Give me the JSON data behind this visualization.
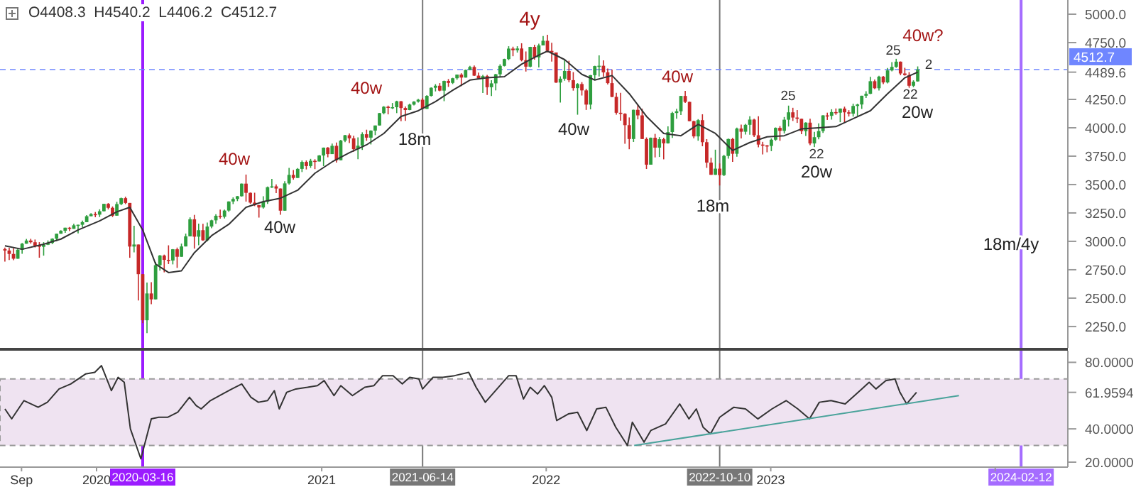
{
  "chart_data": [
    {
      "type": "candlestick",
      "subtitle": "O4408.3  H4540.2  L4406.2  C4512.7",
      "xlim": [
        "2019-07-28",
        "2024-04-28"
      ],
      "ylim": [
        2062,
        5125
      ],
      "yticks": [
        {
          "value": 2250,
          "label": "2250.0"
        },
        {
          "value": 2500,
          "label": "2500.0"
        },
        {
          "value": 2750,
          "label": "2750.0"
        },
        {
          "value": 3000,
          "label": "3000.0"
        },
        {
          "value": 3250,
          "label": "3250.0"
        },
        {
          "value": 3500,
          "label": "3500.0"
        },
        {
          "value": 3750,
          "label": "3750.0"
        },
        {
          "value": 4000,
          "label": "4000.0"
        },
        {
          "value": 4250,
          "label": "4250.0"
        },
        {
          "value": 4489.6,
          "label": "4489.6"
        },
        {
          "value": 4750,
          "label": "4750.0"
        },
        {
          "value": 5000,
          "label": "5000.0"
        }
      ],
      "tick_labels": "y",
      "x": [
        "2019-08-05",
        "2019-08-12",
        "2019-08-19",
        "2019-08-26",
        "2019-09-02",
        "2019-09-09",
        "2019-09-16",
        "2019-09-23",
        "2019-09-30",
        "2019-10-07",
        "2019-10-14",
        "2019-10-21",
        "2019-10-28",
        "2019-11-04",
        "2019-11-11",
        "2019-11-18",
        "2019-11-25",
        "2019-12-02",
        "2019-12-09",
        "2019-12-16",
        "2019-12-23",
        "2019-12-30",
        "2020-01-06",
        "2020-01-13",
        "2020-01-20",
        "2020-01-27",
        "2020-02-03",
        "2020-02-10",
        "2020-02-17",
        "2020-02-24",
        "2020-03-02",
        "2020-03-09",
        "2020-03-16",
        "2020-03-23",
        "2020-03-30",
        "2020-04-06",
        "2020-04-13",
        "2020-04-20",
        "2020-04-27",
        "2020-05-04",
        "2020-05-11",
        "2020-05-18",
        "2020-05-25",
        "2020-06-01",
        "2020-06-08",
        "2020-06-15",
        "2020-06-22",
        "2020-06-29",
        "2020-07-06",
        "2020-07-13",
        "2020-07-20",
        "2020-07-27",
        "2020-08-03",
        "2020-08-10",
        "2020-08-17",
        "2020-08-24",
        "2020-08-31",
        "2020-09-07",
        "2020-09-14",
        "2020-09-21",
        "2020-09-28",
        "2020-10-05",
        "2020-10-12",
        "2020-10-19",
        "2020-10-26",
        "2020-11-02",
        "2020-11-09",
        "2020-11-16",
        "2020-11-23",
        "2020-11-30",
        "2020-12-07",
        "2020-12-14",
        "2020-12-21",
        "2020-12-28",
        "2021-01-04",
        "2021-01-11",
        "2021-01-18",
        "2021-01-25",
        "2021-02-01",
        "2021-02-08",
        "2021-02-15",
        "2021-02-22",
        "2021-03-01",
        "2021-03-08",
        "2021-03-15",
        "2021-03-22",
        "2021-03-29",
        "2021-04-05",
        "2021-04-12",
        "2021-04-19",
        "2021-04-26",
        "2021-05-03",
        "2021-05-10",
        "2021-05-17",
        "2021-05-24",
        "2021-05-31",
        "2021-06-07",
        "2021-06-14",
        "2021-06-21",
        "2021-06-28",
        "2021-07-05",
        "2021-07-12",
        "2021-07-19",
        "2021-07-26",
        "2021-08-02",
        "2021-08-09",
        "2021-08-16",
        "2021-08-23",
        "2021-08-30",
        "2021-09-06",
        "2021-09-13",
        "2021-09-20",
        "2021-09-27",
        "2021-10-04",
        "2021-10-11",
        "2021-10-18",
        "2021-10-25",
        "2021-11-01",
        "2021-11-08",
        "2021-11-15",
        "2021-11-22",
        "2021-11-29",
        "2021-12-06",
        "2021-12-13",
        "2021-12-20",
        "2021-12-27",
        "2022-01-03",
        "2022-01-10",
        "2022-01-17",
        "2022-01-24",
        "2022-01-31",
        "2022-02-07",
        "2022-02-14",
        "2022-02-21",
        "2022-02-28",
        "2022-03-07",
        "2022-03-14",
        "2022-03-21",
        "2022-03-28",
        "2022-04-04",
        "2022-04-11",
        "2022-04-18",
        "2022-04-25",
        "2022-05-02",
        "2022-05-09",
        "2022-05-16",
        "2022-05-23",
        "2022-05-30",
        "2022-06-06",
        "2022-06-13",
        "2022-06-20",
        "2022-06-27",
        "2022-07-04",
        "2022-07-11",
        "2022-07-18",
        "2022-07-25",
        "2022-08-01",
        "2022-08-08",
        "2022-08-15",
        "2022-08-22",
        "2022-08-29",
        "2022-09-05",
        "2022-09-12",
        "2022-09-19",
        "2022-09-26",
        "2022-10-03",
        "2022-10-10",
        "2022-10-17",
        "2022-10-24",
        "2022-10-31",
        "2022-11-07",
        "2022-11-14",
        "2022-11-21",
        "2022-11-28",
        "2022-12-05",
        "2022-12-12",
        "2022-12-19",
        "2022-12-26",
        "2023-01-02",
        "2023-01-09",
        "2023-01-16",
        "2023-01-23",
        "2023-01-30",
        "2023-02-06",
        "2023-02-13",
        "2023-02-20",
        "2023-02-27",
        "2023-03-06",
        "2023-03-13",
        "2023-03-20",
        "2023-03-27",
        "2023-04-03",
        "2023-04-10",
        "2023-04-17",
        "2023-04-24",
        "2023-05-01",
        "2023-05-08",
        "2023-05-15",
        "2023-05-22",
        "2023-05-29",
        "2023-06-05",
        "2023-06-12",
        "2023-06-19",
        "2023-06-26",
        "2023-07-03",
        "2023-07-10",
        "2023-07-17",
        "2023-07-24",
        "2023-07-31",
        "2023-08-07",
        "2023-08-14",
        "2023-08-21",
        "2023-08-28"
      ],
      "ohlc": [
        [
          2932,
          2945,
          2822,
          2919
        ],
        [
          2919,
          2944,
          2836,
          2889
        ],
        [
          2889,
          2939,
          2834,
          2847
        ],
        [
          2847,
          2940,
          2847,
          2926
        ],
        [
          2926,
          2985,
          2891,
          2979
        ],
        [
          2979,
          3021,
          2979,
          3007
        ],
        [
          3007,
          3022,
          2980,
          2992
        ],
        [
          2992,
          3016,
          2946,
          2962
        ],
        [
          2962,
          2993,
          2856,
          2952
        ],
        [
          2952,
          2993,
          2874,
          2970
        ],
        [
          2970,
          3008,
          2967,
          2986
        ],
        [
          2986,
          3027,
          2975,
          3023
        ],
        [
          3023,
          3067,
          3000,
          3067
        ],
        [
          3067,
          3098,
          3067,
          3093
        ],
        [
          3093,
          3120,
          3075,
          3120
        ],
        [
          3120,
          3127,
          3090,
          3110
        ],
        [
          3110,
          3154,
          3110,
          3141
        ],
        [
          3141,
          3146,
          3070,
          3146
        ],
        [
          3146,
          3183,
          3123,
          3169
        ],
        [
          3169,
          3231,
          3169,
          3221
        ],
        [
          3221,
          3248,
          3221,
          3240
        ],
        [
          3240,
          3258,
          3212,
          3235
        ],
        [
          3235,
          3282,
          3214,
          3265
        ],
        [
          3265,
          3330,
          3263,
          3330
        ],
        [
          3330,
          3337,
          3281,
          3295
        ],
        [
          3295,
          3307,
          3214,
          3226
        ],
        [
          3226,
          3348,
          3225,
          3328
        ],
        [
          3328,
          3385,
          3318,
          3380
        ],
        [
          3380,
          3393,
          3328,
          3338
        ],
        [
          3338,
          3338,
          2855,
          2954
        ],
        [
          2954,
          3137,
          2902,
          2972
        ],
        [
          2972,
          2972,
          2479,
          2711
        ],
        [
          2711,
          2711,
          2280,
          2305
        ],
        [
          2305,
          2637,
          2192,
          2541
        ],
        [
          2541,
          2641,
          2447,
          2489
        ],
        [
          2489,
          2819,
          2489,
          2790
        ],
        [
          2790,
          2880,
          2742,
          2875
        ],
        [
          2875,
          2883,
          2727,
          2837
        ],
        [
          2837,
          2965,
          2800,
          2831
        ],
        [
          2831,
          2932,
          2797,
          2930
        ],
        [
          2930,
          2945,
          2766,
          2864
        ],
        [
          2864,
          2980,
          2864,
          2955
        ],
        [
          2955,
          3068,
          2955,
          3044
        ],
        [
          3044,
          3211,
          3044,
          3194
        ],
        [
          3194,
          3233,
          2936,
          3041
        ],
        [
          3041,
          3156,
          2965,
          3098
        ],
        [
          3098,
          3155,
          3004,
          3009
        ],
        [
          3009,
          3165,
          2999,
          3130
        ],
        [
          3130,
          3190,
          3115,
          3185
        ],
        [
          3185,
          3238,
          3154,
          3225
        ],
        [
          3225,
          3280,
          3200,
          3216
        ],
        [
          3216,
          3279,
          3201,
          3271
        ],
        [
          3271,
          3352,
          3260,
          3351
        ],
        [
          3351,
          3387,
          3328,
          3373
        ],
        [
          3373,
          3399,
          3354,
          3397
        ],
        [
          3397,
          3509,
          3394,
          3508
        ],
        [
          3508,
          3588,
          3350,
          3427
        ],
        [
          3427,
          3430,
          3330,
          3341
        ],
        [
          3341,
          3428,
          3310,
          3319
        ],
        [
          3319,
          3320,
          3209,
          3298
        ],
        [
          3298,
          3397,
          3288,
          3348
        ],
        [
          3348,
          3482,
          3330,
          3477
        ],
        [
          3477,
          3550,
          3470,
          3484
        ],
        [
          3484,
          3502,
          3425,
          3465
        ],
        [
          3465,
          3465,
          3234,
          3270
        ],
        [
          3270,
          3530,
          3270,
          3510
        ],
        [
          3510,
          3646,
          3500,
          3585
        ],
        [
          3585,
          3628,
          3543,
          3558
        ],
        [
          3558,
          3645,
          3558,
          3638
        ],
        [
          3638,
          3712,
          3610,
          3699
        ],
        [
          3699,
          3712,
          3633,
          3663
        ],
        [
          3663,
          3726,
          3647,
          3709
        ],
        [
          3709,
          3723,
          3636,
          3703
        ],
        [
          3703,
          3760,
          3703,
          3756
        ],
        [
          3756,
          3826,
          3662,
          3825
        ],
        [
          3825,
          3830,
          3740,
          3768
        ],
        [
          3768,
          3861,
          3768,
          3841
        ],
        [
          3841,
          3870,
          3694,
          3714
        ],
        [
          3714,
          3894,
          3714,
          3887
        ],
        [
          3887,
          3937,
          3874,
          3934
        ],
        [
          3934,
          3950,
          3865,
          3907
        ],
        [
          3907,
          3929,
          3789,
          3811
        ],
        [
          3811,
          3915,
          3723,
          3842
        ],
        [
          3842,
          3960,
          3805,
          3943
        ],
        [
          3943,
          3983,
          3885,
          3913
        ],
        [
          3913,
          3978,
          3853,
          3975
        ],
        [
          3975,
          4020,
          3935,
          4020
        ],
        [
          4020,
          4130,
          4020,
          4129
        ],
        [
          4129,
          4191,
          4118,
          4185
        ],
        [
          4185,
          4195,
          4118,
          4180
        ],
        [
          4180,
          4218,
          4165,
          4181
        ],
        [
          4181,
          4238,
          4129,
          4233
        ],
        [
          4233,
          4236,
          4057,
          4174
        ],
        [
          4174,
          4187,
          4061,
          4156
        ],
        [
          4156,
          4213,
          4155,
          4204
        ],
        [
          4204,
          4234,
          4197,
          4230
        ],
        [
          4230,
          4255,
          4222,
          4247
        ],
        [
          4247,
          4262,
          4164,
          4166
        ],
        [
          4166,
          4287,
          4166,
          4281
        ],
        [
          4281,
          4356,
          4275,
          4352
        ],
        [
          4352,
          4384,
          4320,
          4370
        ],
        [
          4370,
          4393,
          4321,
          4327
        ],
        [
          4327,
          4415,
          4234,
          4412
        ],
        [
          4412,
          4429,
          4360,
          4395
        ],
        [
          4395,
          4440,
          4385,
          4436
        ],
        [
          4436,
          4469,
          4423,
          4468
        ],
        [
          4468,
          4480,
          4367,
          4442
        ],
        [
          4442,
          4513,
          4442,
          4509
        ],
        [
          4509,
          4545,
          4509,
          4535
        ],
        [
          4535,
          4549,
          4456,
          4459
        ],
        [
          4459,
          4486,
          4427,
          4433
        ],
        [
          4433,
          4466,
          4306,
          4455
        ],
        [
          4455,
          4466,
          4289,
          4357
        ],
        [
          4357,
          4418,
          4279,
          4391
        ],
        [
          4391,
          4475,
          4329,
          4471
        ],
        [
          4471,
          4559,
          4445,
          4545
        ],
        [
          4545,
          4608,
          4540,
          4605
        ],
        [
          4605,
          4718,
          4595,
          4697
        ],
        [
          4697,
          4714,
          4630,
          4683
        ],
        [
          4683,
          4718,
          4662,
          4698
        ],
        [
          4698,
          4744,
          4585,
          4595
        ],
        [
          4595,
          4672,
          4495,
          4538
        ],
        [
          4538,
          4713,
          4532,
          4712
        ],
        [
          4712,
          4731,
          4600,
          4620
        ],
        [
          4620,
          4740,
          4531,
          4725
        ],
        [
          4725,
          4808,
          4725,
          4766
        ],
        [
          4766,
          4819,
          4662,
          4677
        ],
        [
          4677,
          4749,
          4582,
          4663
        ],
        [
          4663,
          4663,
          4395,
          4398
        ],
        [
          4398,
          4453,
          4222,
          4432
        ],
        [
          4432,
          4596,
          4414,
          4500
        ],
        [
          4500,
          4590,
          4401,
          4419
        ],
        [
          4419,
          4490,
          4327,
          4349
        ],
        [
          4349,
          4393,
          4115,
          4385
        ],
        [
          4385,
          4402,
          4284,
          4329
        ],
        [
          4329,
          4343,
          4157,
          4204
        ],
        [
          4204,
          4465,
          4162,
          4463
        ],
        [
          4463,
          4546,
          4424,
          4543
        ],
        [
          4543,
          4638,
          4452,
          4546
        ],
        [
          4546,
          4594,
          4450,
          4488
        ],
        [
          4488,
          4521,
          4381,
          4393
        ],
        [
          4393,
          4513,
          4269,
          4272
        ],
        [
          4272,
          4308,
          4115,
          4132
        ],
        [
          4132,
          4307,
          4063,
          4123
        ],
        [
          4123,
          4128,
          3859,
          4023
        ],
        [
          4023,
          4091,
          3811,
          3901
        ],
        [
          3901,
          4159,
          3875,
          4158
        ],
        [
          4158,
          4204,
          4074,
          4109
        ],
        [
          4109,
          4168,
          3901,
          3901
        ],
        [
          3901,
          3915,
          3637,
          3675
        ],
        [
          3675,
          3914,
          3675,
          3912
        ],
        [
          3912,
          3946,
          3739,
          3825
        ],
        [
          3825,
          3918,
          3743,
          3899
        ],
        [
          3899,
          3912,
          3722,
          3863
        ],
        [
          3863,
          4012,
          3860,
          3962
        ],
        [
          3962,
          4140,
          3911,
          4130
        ],
        [
          4130,
          4167,
          4079,
          4145
        ],
        [
          4145,
          4281,
          4112,
          4280
        ],
        [
          4280,
          4325,
          4218,
          4228
        ],
        [
          4228,
          4230,
          4057,
          4058
        ],
        [
          4058,
          4062,
          3907,
          3924
        ],
        [
          3924,
          4076,
          3886,
          4067
        ],
        [
          4067,
          4119,
          3837,
          3873
        ],
        [
          3873,
          3900,
          3647,
          3693
        ],
        [
          3693,
          3736,
          3585,
          3586
        ],
        [
          3586,
          3807,
          3585,
          3640
        ],
        [
          3640,
          3686,
          3492,
          3583
        ],
        [
          3583,
          3762,
          3575,
          3752
        ],
        [
          3752,
          3905,
          3728,
          3901
        ],
        [
          3901,
          3911,
          3699,
          3771
        ],
        [
          3771,
          4001,
          3745,
          3993
        ],
        [
          3993,
          4028,
          3906,
          3965
        ],
        [
          3965,
          4034,
          3940,
          4026
        ],
        [
          4026,
          4101,
          3939,
          4072
        ],
        [
          4072,
          4080,
          3919,
          3934
        ],
        [
          3934,
          4101,
          3828,
          3852
        ],
        [
          3852,
          3876,
          3765,
          3845
        ],
        [
          3845,
          3848,
          3784,
          3840
        ],
        [
          3840,
          3906,
          3794,
          3895
        ],
        [
          3895,
          4003,
          3885,
          3999
        ],
        [
          3999,
          4015,
          3885,
          3973
        ],
        [
          3973,
          4095,
          3950,
          4071
        ],
        [
          4071,
          4195,
          4011,
          4136
        ],
        [
          4136,
          4176,
          4060,
          4090
        ],
        [
          4090,
          4156,
          4043,
          4079
        ],
        [
          4079,
          4080,
          3944,
          3970
        ],
        [
          3970,
          4049,
          3928,
          4045
        ],
        [
          4045,
          4079,
          3847,
          3862
        ],
        [
          3862,
          3964,
          3808,
          3917
        ],
        [
          3917,
          4039,
          3899,
          3971
        ],
        [
          3971,
          4110,
          3955,
          4109
        ],
        [
          4109,
          4133,
          4069,
          4105
        ],
        [
          4105,
          4163,
          4072,
          4138
        ],
        [
          4138,
          4170,
          4114,
          4133
        ],
        [
          4133,
          4170,
          4049,
          4169
        ],
        [
          4169,
          4186,
          4048,
          4136
        ],
        [
          4136,
          4155,
          4099,
          4124
        ],
        [
          4124,
          4212,
          4098,
          4192
        ],
        [
          4192,
          4212,
          4103,
          4205
        ],
        [
          4205,
          4282,
          4166,
          4282
        ],
        [
          4282,
          4322,
          4262,
          4299
        ],
        [
          4299,
          4448,
          4297,
          4410
        ],
        [
          4410,
          4425,
          4341,
          4348
        ],
        [
          4348,
          4458,
          4328,
          4450
        ],
        [
          4450,
          4456,
          4385,
          4399
        ],
        [
          4399,
          4527,
          4391,
          4505
        ],
        [
          4505,
          4578,
          4497,
          4536
        ],
        [
          4536,
          4607,
          4528,
          4582
        ],
        [
          4582,
          4584,
          4463,
          4478
        ],
        [
          4478,
          4528,
          4459,
          4464
        ],
        [
          4464,
          4490,
          4335,
          4370
        ],
        [
          4370,
          4418,
          4356,
          4406
        ],
        [
          4408.3,
          4540.2,
          4406.2,
          4512.7
        ]
      ],
      "series": [
        {
          "type": "line",
          "color": "#333333",
          "x": [
            "2019-08-05",
            "2019-09-02",
            "2019-10-07",
            "2019-11-04",
            "2019-12-02",
            "2020-01-06",
            "2020-02-03",
            "2020-02-24",
            "2020-03-16",
            "2020-04-06",
            "2020-04-27",
            "2020-05-18",
            "2020-06-08",
            "2020-07-06",
            "2020-08-03",
            "2020-08-31",
            "2020-09-28",
            "2020-10-26",
            "2020-11-23",
            "2020-12-21",
            "2021-01-18",
            "2021-02-15",
            "2021-03-15",
            "2021-04-12",
            "2021-05-10",
            "2021-06-07",
            "2021-07-05",
            "2021-08-02",
            "2021-08-30",
            "2021-09-27",
            "2021-10-25",
            "2021-11-22",
            "2021-12-20",
            "2022-01-03",
            "2022-01-31",
            "2022-02-28",
            "2022-03-21",
            "2022-04-18",
            "2022-05-16",
            "2022-06-13",
            "2022-07-11",
            "2022-08-08",
            "2022-09-05",
            "2022-10-03",
            "2022-10-31",
            "2022-11-28",
            "2022-12-26",
            "2023-01-23",
            "2023-02-20",
            "2023-03-20",
            "2023-04-17",
            "2023-05-15",
            "2023-06-12",
            "2023-07-10",
            "2023-08-07",
            "2023-08-28"
          ],
          "values": [
            2960,
            2930,
            2975,
            3020,
            3100,
            3180,
            3260,
            3300,
            3100,
            2800,
            2725,
            2740,
            2900,
            3050,
            3150,
            3300,
            3350,
            3380,
            3450,
            3600,
            3700,
            3780,
            3850,
            3950,
            4100,
            4150,
            4230,
            4330,
            4420,
            4440,
            4450,
            4560,
            4640,
            4675,
            4600,
            4470,
            4420,
            4460,
            4300,
            4100,
            3950,
            3930,
            4030,
            3950,
            3800,
            3870,
            3920,
            3930,
            3990,
            4000,
            4010,
            4080,
            4150,
            4300,
            4440,
            4489.6
          ]
        }
      ],
      "ref_lines": [
        {
          "axis": "x",
          "value": "2020-03-16",
          "color": "#9b1cff"
        },
        {
          "axis": "x",
          "value": "2021-06-14",
          "color": "#777777"
        },
        {
          "axis": "x",
          "value": "2022-10-10",
          "color": "#777777"
        },
        {
          "axis": "x",
          "value": "2024-02-12",
          "color": "#a56cff"
        },
        {
          "axis": "y",
          "value": 4512.7,
          "label": "4512.7",
          "color": "#6f86ff",
          "line_style": "dashed"
        }
      ],
      "annotations": [
        "40w",
        "40w",
        "40w",
        "18m",
        "4y",
        "40w",
        "40w",
        "18m",
        "25",
        "22",
        "20w",
        "25",
        "40w?",
        "2",
        "22",
        "20w",
        "18m/4y"
      ]
    },
    {
      "type": "line",
      "xlim": [
        "2019-07-28",
        "2024-04-28"
      ],
      "ylim": [
        17,
        87
      ],
      "yticks": [
        {
          "value": 20,
          "label": "20.0000"
        },
        {
          "value": 40,
          "label": "40.0000"
        },
        {
          "value": 61.9594,
          "label": "61.9594"
        },
        {
          "value": 80,
          "label": "80.0000"
        }
      ],
      "xticks": [
        {
          "value": "2019-09-01",
          "label": "Sep"
        },
        {
          "value": "2020-01-01",
          "label": "2020"
        },
        {
          "value": "2021-01-01",
          "label": "2021"
        },
        {
          "value": "2022-01-01",
          "label": "2022"
        },
        {
          "value": "2023-01-01",
          "label": "2023"
        },
        {
          "value": "2024-01-01",
          "label": null
        }
      ],
      "bands": [
        {
          "axis": "y",
          "from": 30,
          "to": 70,
          "color": "#efe3f1"
        }
      ],
      "ref_lines": [
        {
          "axis": "x",
          "value": "2020-03-16",
          "label": "2020-03-16",
          "color": "#9b1cff"
        },
        {
          "axis": "x",
          "value": "2021-06-14",
          "label": "2021-06-14",
          "color": "#777777"
        },
        {
          "axis": "x",
          "value": "2022-10-10",
          "label": "2022-10-10",
          "color": "#777777"
        },
        {
          "axis": "x",
          "value": "2024-02-12",
          "label": "2024-02-12",
          "color": "#a56cff"
        }
      ],
      "series": [
        {
          "color": "#333333",
          "x": [
            "2019-08-05",
            "2019-08-16",
            "2019-09-05",
            "2019-09-28",
            "2019-10-13",
            "2019-11-01",
            "2019-11-20",
            "2019-12-14",
            "2019-12-29",
            "2020-01-09",
            "2020-01-25",
            "2020-02-05",
            "2020-02-15",
            "2020-02-25",
            "2020-03-13",
            "2020-03-30",
            "2020-04-11",
            "2020-04-26",
            "2020-05-12",
            "2020-05-31",
            "2020-06-11",
            "2020-06-19",
            "2020-07-04",
            "2020-07-24",
            "2020-08-08",
            "2020-08-24",
            "2020-09-08",
            "2020-09-20",
            "2020-10-05",
            "2020-10-16",
            "2020-10-24",
            "2020-11-05",
            "2020-11-20",
            "2020-12-09",
            "2020-12-25",
            "2021-01-05",
            "2021-01-21",
            "2021-02-01",
            "2021-02-20",
            "2021-03-12",
            "2021-03-27",
            "2021-04-10",
            "2021-04-27",
            "2021-05-12",
            "2021-05-24",
            "2021-06-08",
            "2021-06-14",
            "2021-07-01",
            "2021-07-17",
            "2021-08-05",
            "2021-08-28",
            "2021-09-09",
            "2021-09-24",
            "2021-10-13",
            "2021-11-01",
            "2021-11-13",
            "2021-11-25",
            "2021-12-06",
            "2021-12-18",
            "2021-12-29",
            "2022-01-10",
            "2022-01-18",
            "2022-02-06",
            "2022-02-21",
            "2022-03-08",
            "2022-03-24",
            "2022-04-08",
            "2022-04-24",
            "2022-05-13",
            "2022-05-21",
            "2022-06-09",
            "2022-06-20",
            "2022-07-14",
            "2022-08-06",
            "2022-08-21",
            "2022-09-02",
            "2022-09-13",
            "2022-09-25",
            "2022-10-10",
            "2022-11-02",
            "2022-11-21",
            "2022-12-11",
            "2023-01-03",
            "2023-01-26",
            "2023-02-14",
            "2023-03-05",
            "2023-03-21",
            "2023-04-09",
            "2023-05-02",
            "2023-05-29",
            "2023-06-10",
            "2023-06-21",
            "2023-07-07",
            "2023-07-22",
            "2023-07-30",
            "2023-08-10",
            "2023-08-26"
          ],
          "values": [
            52,
            46,
            57,
            53,
            56,
            64,
            67,
            73,
            74,
            78,
            63,
            71,
            68,
            40,
            22,
            46,
            47,
            47,
            50,
            59,
            54,
            52,
            57,
            61,
            64,
            67,
            59,
            56,
            57,
            63,
            52,
            62,
            64,
            65,
            66,
            69,
            60,
            66,
            60,
            65,
            66,
            72,
            72,
            67,
            71,
            70,
            64,
            71,
            71,
            72,
            74,
            65,
            56,
            64,
            72,
            72,
            58,
            65,
            61,
            66,
            59,
            45,
            49,
            50,
            39,
            52,
            53,
            41,
            30,
            44,
            32,
            39,
            43,
            55,
            46,
            52,
            41,
            37,
            47,
            53,
            52,
            46,
            52,
            57,
            52,
            46,
            56,
            57,
            55,
            64,
            68,
            64,
            69,
            70,
            62,
            55,
            61.9594
          ]
        },
        {
          "color": "#4aa39b",
          "x": [
            "2022-05-24",
            "2023-11-03"
          ],
          "values": [
            30,
            60
          ]
        }
      ]
    }
  ]
}
